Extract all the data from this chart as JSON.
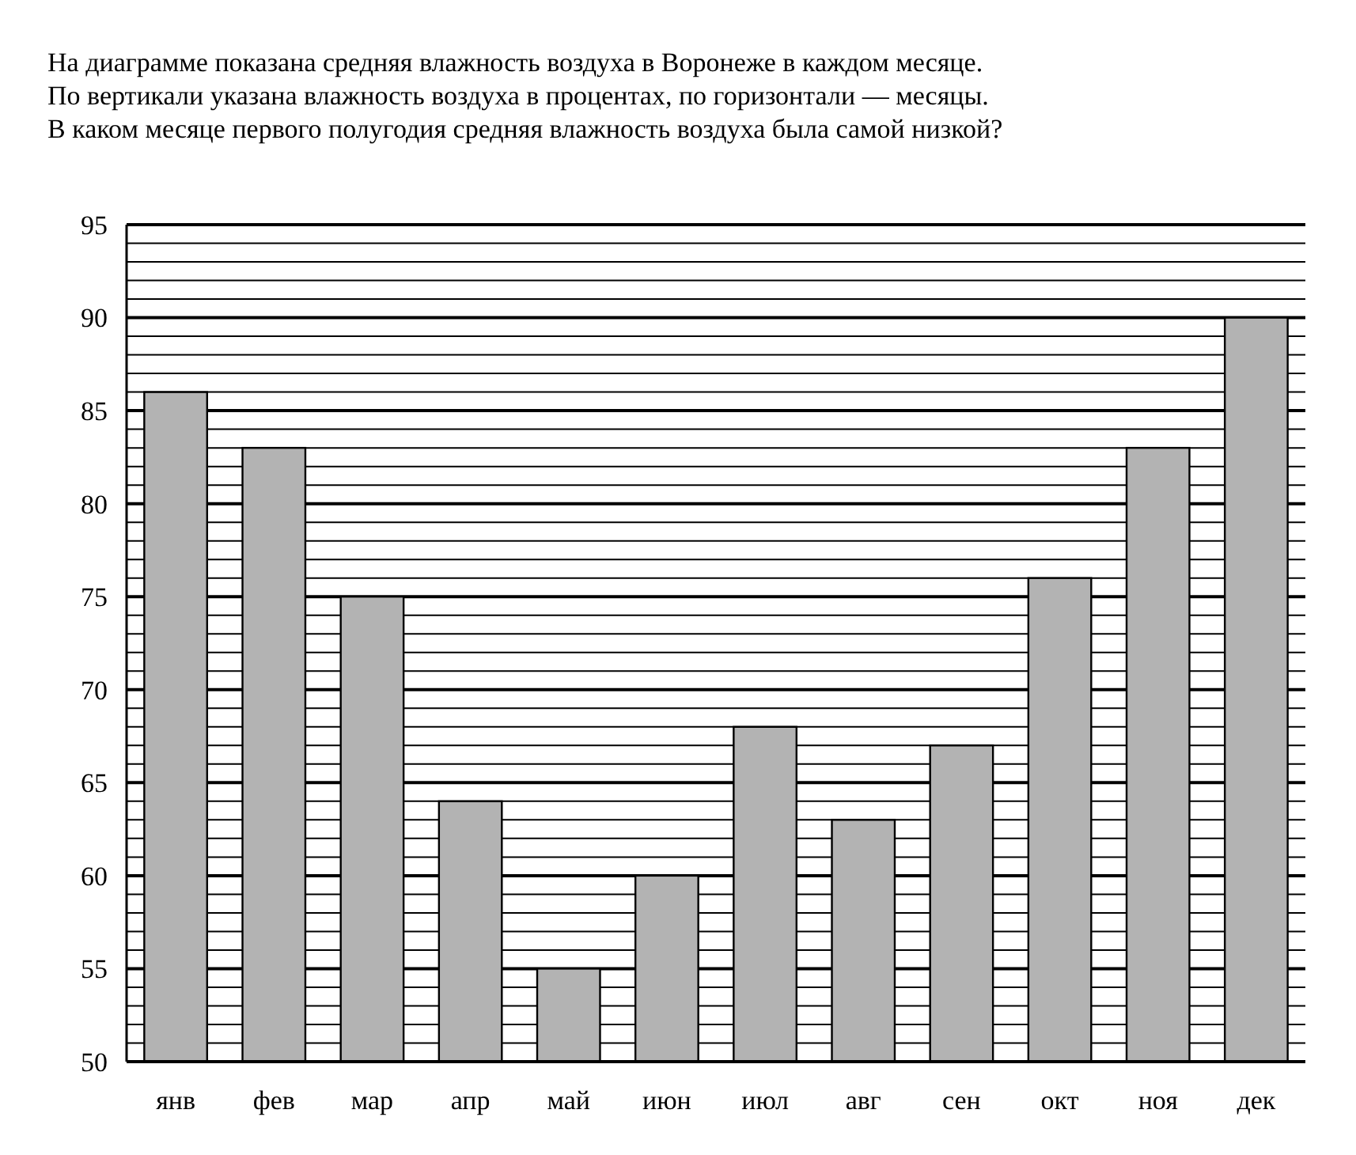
{
  "chart_data": {
    "type": "bar",
    "title": "На диаграмме показана средняя влажность воздуха в Воронеже в каждом месяце.\nПо вертикали указана влажность воздуха в процентах, по горизонтали — месяцы.\nВ каком месяце первого полугодия средняя влажность воздуха была самой низкой?",
    "categories": [
      "янв",
      "фев",
      "мар",
      "апр",
      "май",
      "июн",
      "июл",
      "авг",
      "сен",
      "окт",
      "ноя",
      "дек"
    ],
    "values": [
      86,
      83,
      75,
      64,
      55,
      60,
      68,
      63,
      67,
      76,
      83,
      90
    ],
    "color": "#b3b3b3",
    "ylim": [
      50,
      95
    ],
    "yticks": [
      50,
      {
        "value": 51,
        "label": null
      },
      {
        "value": 52,
        "label": null
      },
      {
        "value": 53,
        "label": null
      },
      {
        "value": 54,
        "label": null
      },
      55,
      {
        "value": 56,
        "label": null
      },
      {
        "value": 57,
        "label": null
      },
      {
        "value": 58,
        "label": null
      },
      {
        "value": 59,
        "label": null
      },
      60,
      {
        "value": 61,
        "label": null
      },
      {
        "value": 62,
        "label": null
      },
      {
        "value": 63,
        "label": null
      },
      {
        "value": 64,
        "label": null
      },
      65,
      {
        "value": 66,
        "label": null
      },
      {
        "value": 67,
        "label": null
      },
      {
        "value": 68,
        "label": null
      },
      {
        "value": 69,
        "label": null
      },
      70,
      {
        "value": 71,
        "label": null
      },
      {
        "value": 72,
        "label": null
      },
      {
        "value": 73,
        "label": null
      },
      {
        "value": 74,
        "label": null
      },
      75,
      {
        "value": 76,
        "label": null
      },
      {
        "value": 77,
        "label": null
      },
      {
        "value": 78,
        "label": null
      },
      {
        "value": 79,
        "label": null
      },
      80,
      {
        "value": 81,
        "label": null
      },
      {
        "value": 82,
        "label": null
      },
      {
        "value": 83,
        "label": null
      },
      {
        "value": 84,
        "label": null
      },
      85,
      {
        "value": 86,
        "label": null
      },
      {
        "value": 87,
        "label": null
      },
      {
        "value": 88,
        "label": null
      },
      {
        "value": 89,
        "label": null
      },
      90,
      {
        "value": 91,
        "label": null
      },
      {
        "value": 92,
        "label": null
      },
      {
        "value": 93,
        "label": null
      },
      {
        "value": 94,
        "label": null
      },
      95
    ],
    "grid": "y"
  }
}
